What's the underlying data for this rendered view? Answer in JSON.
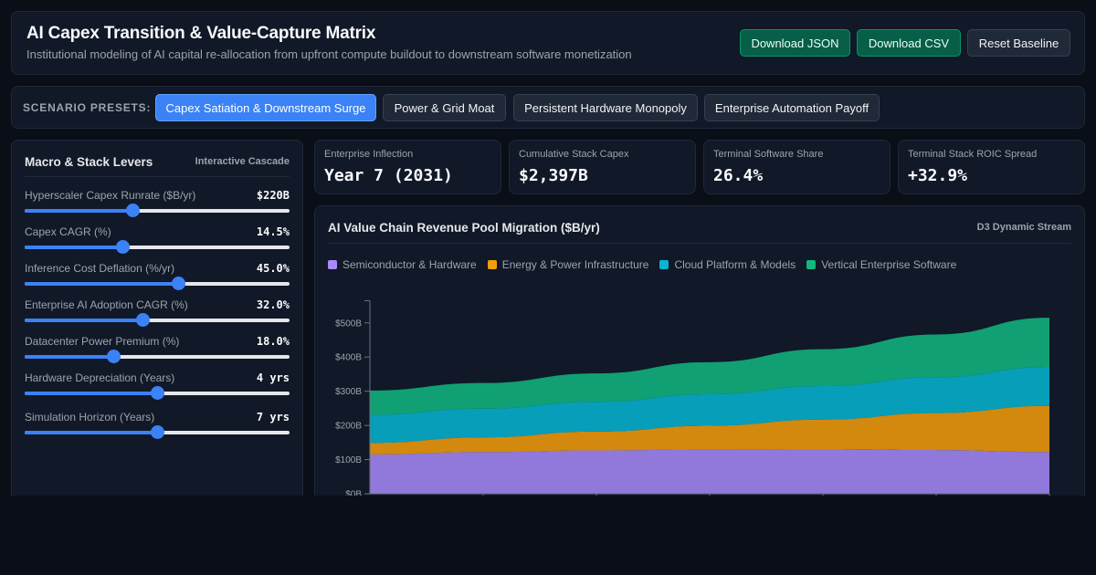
{
  "header": {
    "title": "AI Capex Transition & Value-Capture Matrix",
    "subtitle": "Institutional modeling of AI capital re-allocation from upfront compute buildout to downstream software monetization",
    "buttons": {
      "download_json": "Download JSON",
      "download_csv": "Download CSV",
      "reset": "Reset Baseline"
    }
  },
  "presets": {
    "label": "SCENARIO PRESETS:",
    "items": [
      {
        "label": "Capex Satiation & Downstream Surge",
        "active": true
      },
      {
        "label": "Power & Grid Moat",
        "active": false
      },
      {
        "label": "Persistent Hardware Monopoly",
        "active": false
      },
      {
        "label": "Enterprise Automation Payoff",
        "active": false
      }
    ]
  },
  "levers": {
    "title": "Macro & Stack Levers",
    "tag": "Interactive Cascade",
    "items": [
      {
        "label": "Hyperscaler Capex Runrate ($B/yr)",
        "value": "$220B",
        "level": 0.41
      },
      {
        "label": "Capex CAGR (%)",
        "value": "14.5%",
        "level": 0.37
      },
      {
        "label": "Inference Cost Deflation (%/yr)",
        "value": "45.0%",
        "level": 0.58
      },
      {
        "label": "Enterprise AI Adoption CAGR (%)",
        "value": "32.0%",
        "level": 0.445
      },
      {
        "label": "Datacenter Power Premium (%)",
        "value": "18.0%",
        "level": 0.335
      },
      {
        "label": "Hardware Depreciation (Years)",
        "value": "4 yrs",
        "level": 0.5
      },
      {
        "label": "Simulation Horizon (Years)",
        "value": "7 yrs",
        "level": 0.5
      }
    ]
  },
  "kpis": [
    {
      "label": "Enterprise Inflection",
      "value": "Year 7 (2031)"
    },
    {
      "label": "Cumulative Stack Capex",
      "value": "$2,397B"
    },
    {
      "label": "Terminal Software Share",
      "value": "26.4%"
    },
    {
      "label": "Terminal Stack ROIC Spread",
      "value": "+32.9%"
    }
  ],
  "chart": {
    "title": "AI Value Chain Revenue Pool Migration ($B/yr)",
    "tag": "D3 Dynamic Stream"
  },
  "chart_data": {
    "type": "area",
    "stacked": true,
    "title": "AI Value Chain Revenue Pool Migration ($B/yr)",
    "x": [
      0,
      1,
      2,
      3,
      4,
      5,
      6
    ],
    "y_ticks": [
      "$0B",
      "$100B",
      "$200B",
      "$300B",
      "$400B",
      "$500B"
    ],
    "ylim": [
      0,
      565
    ],
    "legend_placement": "top-left",
    "series": [
      {
        "name": "Semiconductor & Hardware",
        "color": "#a78bfa",
        "values": [
          115,
          122,
          127,
          130,
          131,
          128,
          122
        ]
      },
      {
        "name": "Energy & Power Infrastructure",
        "color": "#f59e0b",
        "values": [
          34,
          43,
          55,
          69,
          86,
          108,
          135
        ]
      },
      {
        "name": "Cloud Platform & Models",
        "color": "#06b6d4",
        "values": [
          82,
          84,
          87,
          92,
          98,
          105,
          114
        ]
      },
      {
        "name": "Vertical Enterprise Software",
        "color": "#10b981",
        "values": [
          71,
          75,
          83,
          94,
          108,
          125,
          144
        ]
      }
    ]
  }
}
